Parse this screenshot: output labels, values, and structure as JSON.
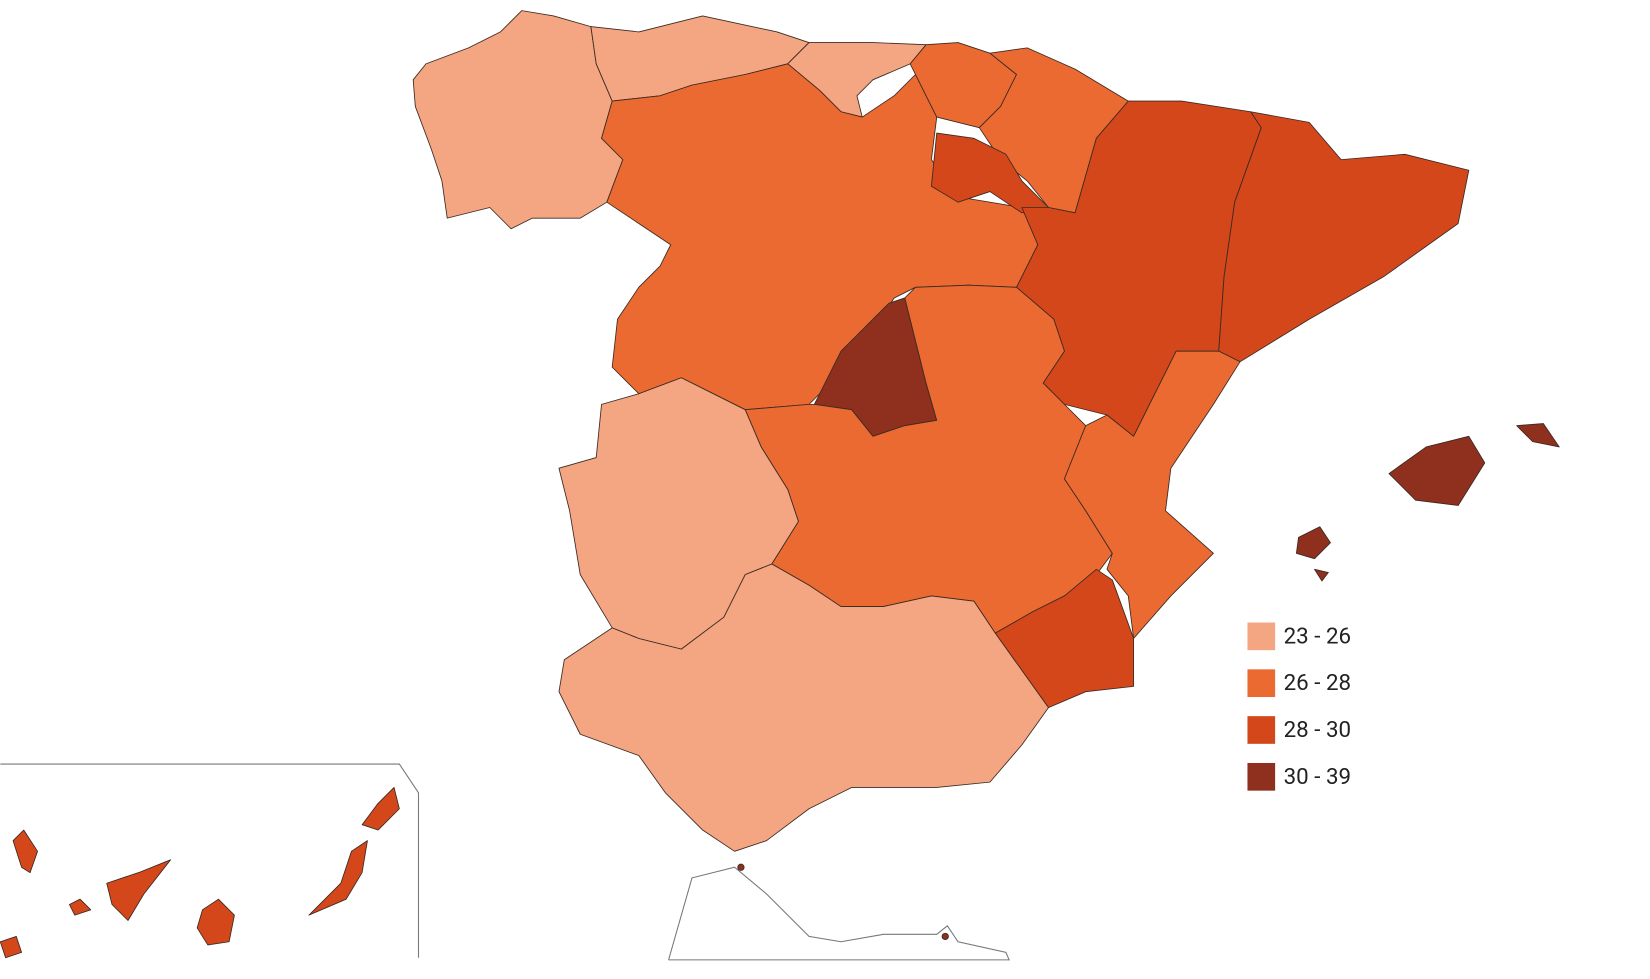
{
  "legend": {
    "items": [
      {
        "label": "23 - 26",
        "color": "#f4a582"
      },
      {
        "label": "26 - 28",
        "color": "#eb6a32"
      },
      {
        "label": "28 - 30",
        "color": "#d4471b"
      },
      {
        "label": "30 - 39",
        "color": "#8f2f1e"
      }
    ]
  },
  "region_classes": [
    0,
    0,
    0,
    1,
    1,
    1,
    2,
    2,
    2,
    3,
    1,
    0,
    1,
    2,
    0,
    3,
    3,
    3,
    3,
    2,
    2,
    2,
    2,
    2,
    2,
    2,
    3,
    3
  ]
}
